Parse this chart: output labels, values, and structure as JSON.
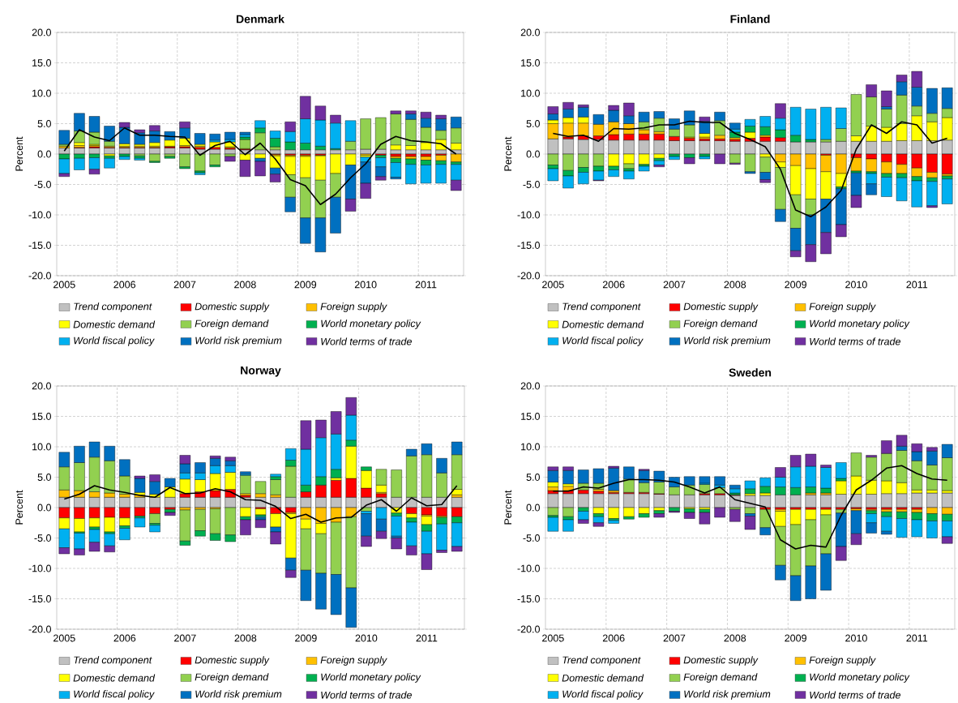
{
  "chart_data": [
    {
      "type": "bar",
      "stacked": true,
      "title": "Denmark",
      "ylabel": "Percent",
      "grid": true,
      "legend": "bottom",
      "categories": [
        "2005",
        null,
        null,
        null,
        "2006",
        null,
        null,
        null,
        "2007",
        null,
        null,
        null,
        "2008",
        null,
        null,
        null,
        "2009",
        null,
        null,
        null,
        "2010",
        null,
        null,
        null,
        "2011",
        null,
        null
      ],
      "ylim": [
        -20,
        20
      ],
      "yticks": [
        {
          "value": -20,
          "label": "-20.0"
        },
        {
          "value": -15,
          "label": "-15.0"
        },
        {
          "value": -10,
          "label": "-10.0"
        },
        {
          "value": -5,
          "label": "-5.0"
        },
        {
          "value": 0,
          "label": "0.0"
        },
        {
          "value": 5,
          "label": "5.0"
        },
        {
          "value": 10,
          "label": "10.0"
        },
        {
          "value": 15,
          "label": "15.0"
        },
        {
          "value": 20,
          "label": "20.0"
        }
      ],
      "series": [
        {
          "name": "Trend component",
          "color": "#c0c0c0",
          "values": [
            1.0,
            1.0,
            1.0,
            1.0,
            1.0,
            1.0,
            1.0,
            1.0,
            1.0,
            0.8,
            0.8,
            0.8,
            0.7,
            0.7,
            0.7,
            0.7,
            0.7,
            0.7,
            0.7,
            0.7,
            0.8,
            0.8,
            0.7,
            0.7,
            0.7,
            0.7,
            0.7
          ]
        },
        {
          "name": "Domestic supply",
          "color": "#ff0000",
          "values": [
            null,
            0.1,
            0.2,
            0.1,
            0.1,
            0.1,
            0.1,
            0.2,
            0.2,
            0.3,
            0.3,
            0.2,
            0.1,
            0,
            -0.1,
            -0.2,
            -0.2,
            -0.2,
            0,
            0,
            0,
            -0.2,
            -0.4,
            -0.4,
            -0.4,
            -0.2,
            0
          ]
        },
        {
          "name": "Foreign supply",
          "color": "#ffc000",
          "values": [
            0.3,
            0.3,
            0.2,
            0.2,
            0.2,
            0.2,
            0.2,
            0.1,
            0.2,
            0.2,
            null,
            0.2,
            0.1,
            0,
            -0.2,
            -0.2,
            -0.2,
            -0.1,
            0,
            0,
            -0.2,
            0,
            -0.3,
            -0.4,
            -0.6,
            -0.9,
            -1.3
          ]
        },
        {
          "name": "Domestic demand",
          "color": "#ffff00",
          "values": [
            null,
            0.5,
            0.2,
            -0.3,
            0.4,
            0.3,
            0.6,
            1.0,
            1.2,
            0.3,
            0.9,
            0.8,
            -1.0,
            -0.7,
            -2.0,
            -3.0,
            -3.5,
            -4.0,
            -3.2,
            -1.8,
            -0.3,
            0,
            0.8,
            0.7,
            1.2,
            1.7,
            1.1
          ]
        },
        {
          "name": "Foreign demand",
          "color": "#92d050",
          "values": [
            0.3,
            1.9,
            2.0,
            0.8,
            0,
            -0.3,
            -1.2,
            -0.4,
            -2.1,
            -2.8,
            -1.8,
            -0.4,
            1.5,
            2.8,
            0.5,
            -3.7,
            -6.6,
            -6.2,
            -3.9,
            1.4,
            5.0,
            5.2,
            5.1,
            4.3,
            2.5,
            1.5,
            2.5
          ]
        },
        {
          "name": "World monetary policy",
          "color": "#00b050",
          "values": [
            -0.8,
            -0.7,
            -0.6,
            -0.4,
            -0.4,
            -0.4,
            -0.2,
            -0.3,
            -0.3,
            -0.3,
            -0.3,
            0,
            0.4,
            0.8,
            1.4,
            1.3,
            1.1,
            0.6,
            0.2,
            0,
            0,
            -0.4,
            -0.7,
            -0.9,
            -0.8,
            -0.6,
            -0.4
          ]
        },
        {
          "name": "World fiscal policy",
          "color": "#00b0f0",
          "values": [
            -2.4,
            -1.9,
            -1.9,
            -1.6,
            -0.5,
            -0.3,
            0,
            0,
            0,
            -0.3,
            0.3,
            0.4,
            0.4,
            1.2,
            1.2,
            1.7,
            4.0,
            4.3,
            4.2,
            3.4,
            -0.8,
            -1.5,
            -2.4,
            -3.2,
            -3.0,
            -3.1,
            -2.6
          ]
        },
        {
          "name": "World risk premium",
          "color": "#0070c0",
          "values": [
            2.3,
            2.9,
            2.6,
            2.5,
            2.7,
            1.9,
            1.9,
            1.4,
            1.7,
            1.8,
            1.0,
            1.2,
            0.4,
            -0.5,
            -1.0,
            -2.4,
            -4.2,
            -5.6,
            -5.9,
            -5.6,
            -3.5,
            -1.6,
            -0.3,
            0.9,
            1.5,
            1.9,
            1.8
          ]
        },
        {
          "name": "World terms of trade",
          "color": "#7030a0",
          "values": [
            -0.5,
            0,
            -0.8,
            0,
            0.8,
            0.5,
            0.9,
            0,
            1.0,
            0,
            0,
            -0.8,
            -2.7,
            -2.4,
            -1.3,
            1.6,
            3.7,
            2.3,
            1.3,
            -2.0,
            -2.5,
            -0.6,
            0.5,
            0.5,
            1.0,
            0.6,
            -1.7
          ]
        },
        {
          "type": "line",
          "color": "#000000",
          "values": [
            0.5,
            4.0,
            2.8,
            2.2,
            4.3,
            3.1,
            3.1,
            2.9,
            2.8,
            -0.2,
            1.4,
            2.1,
            -0.1,
            1.8,
            -0.8,
            -4.2,
            -5.2,
            -8.3,
            -6.6,
            -3.9,
            -1.6,
            1.6,
            2.9,
            2.2,
            2.0,
            1.7,
            0.0
          ]
        }
      ]
    },
    {
      "type": "bar",
      "stacked": true,
      "title": "Finland",
      "ylabel": "Percent",
      "grid": true,
      "legend": "bottom",
      "categories": [
        "2005",
        null,
        null,
        null,
        "2006",
        null,
        null,
        null,
        "2007",
        null,
        null,
        null,
        "2008",
        null,
        null,
        null,
        "2009",
        null,
        null,
        null,
        "2010",
        null,
        null,
        null,
        "2011",
        null,
        null
      ],
      "ylim": [
        -20,
        20
      ],
      "yticks": [
        {
          "value": -20,
          "label": "-20.0"
        },
        {
          "value": -15,
          "label": "-15.0"
        },
        {
          "value": -10,
          "label": "-10.0"
        },
        {
          "value": -5,
          "label": "-5.0"
        },
        {
          "value": 0,
          "label": "0.0"
        },
        {
          "value": 5,
          "label": "5.0"
        },
        {
          "value": 10,
          "label": "10.0"
        },
        {
          "value": 15,
          "label": "15.0"
        },
        {
          "value": 20,
          "label": "20.0"
        }
      ],
      "series": [
        {
          "name": "Trend component",
          "color": "#c0c0c0",
          "values": [
            2.5,
            2.5,
            2.4,
            2.4,
            2.3,
            2.3,
            2.3,
            2.3,
            2.2,
            2.2,
            2.2,
            2.2,
            2.1,
            2.1,
            2.1,
            2.1,
            2.0,
            2.0,
            2.0,
            2.1,
            2.1,
            2.1,
            2.1,
            2.2,
            2.2,
            2.2,
            2.3
          ]
        },
        {
          "name": "Domestic supply",
          "color": "#ff0000",
          "values": [
            0,
            0.3,
            0.6,
            0.6,
            0.9,
            1.0,
            1.0,
            1.0,
            0.7,
            0.4,
            0.3,
            0.3,
            0.3,
            0.5,
            0.7,
            0.6,
            0,
            0,
            -0.2,
            0,
            -0.6,
            -0.8,
            -1.3,
            -1.7,
            -2.3,
            -3.0,
            -3.3
          ]
        },
        {
          "name": "Foreign supply",
          "color": "#ffc000",
          "values": [
            2.5,
            2.3,
            2.1,
            1.9,
            2.1,
            1.7,
            0.7,
            0.4,
            0,
            0.2,
            0.3,
            0.6,
            0.3,
            0,
            0.3,
            -1.3,
            -1.9,
            -2.4,
            -2.7,
            -3.2,
            -2.2,
            -2.1,
            -1.9,
            -1.5,
            -1.4,
            -0.9,
            -0.3
          ]
        },
        {
          "name": "Domestic demand",
          "color": "#ffff00",
          "values": [
            0.6,
            0.9,
            1.0,
            0,
            -2.0,
            -1.6,
            -1.7,
            -0.7,
            0,
            0,
            0.6,
            0,
            0,
            1.0,
            -0.5,
            -0.9,
            -4.8,
            -5.0,
            -4.5,
            -2.2,
            0.9,
            2.5,
            2.3,
            2.8,
            4.1,
            3.1,
            3.7
          ]
        },
        {
          "name": "Foreign demand",
          "color": "#92d050",
          "values": [
            -1.8,
            -2.7,
            -2.2,
            -2.0,
            0,
            -0.8,
            1.3,
            2.2,
            1.2,
            2.0,
            0,
            2.4,
            -1.5,
            -2.9,
            -2.5,
            -6.9,
            -5.5,
            -2.6,
            0.4,
            2.1,
            6.8,
            4.8,
            3.0,
            4.7,
            1.6,
            1.4,
            1.5
          ]
        },
        {
          "name": "World monetary policy",
          "color": "#00b050",
          "values": [
            -0.6,
            -0.9,
            -0.8,
            -0.8,
            -0.6,
            -0.4,
            -0.3,
            -0.4,
            -0.4,
            -0.6,
            -0.4,
            0,
            0.9,
            1.0,
            1.4,
            1.3,
            1.1,
            0.4,
            0,
            -0.3,
            -0.3,
            -0.3,
            -0.6,
            -0.7,
            -0.7,
            -0.6,
            -0.5
          ]
        },
        {
          "name": "World fiscal policy",
          "color": "#00b0f0",
          "values": [
            -2.0,
            -2.0,
            -1.9,
            -1.5,
            -1.1,
            -1.3,
            -0.8,
            -0.7,
            -0.5,
            0,
            -0.4,
            0,
            0.5,
            1.1,
            1.7,
            1.9,
            4.6,
            5.0,
            5.3,
            3.4,
            0,
            -1.7,
            -3.2,
            -3.8,
            -4.3,
            -4.0,
            -4.1
          ]
        },
        {
          "name": "World risk premium",
          "color": "#0070c0",
          "values": [
            1.0,
            1.4,
            1.6,
            1.6,
            1.9,
            1.3,
            1.6,
            1.1,
            1.7,
            2.3,
            2.0,
            1.4,
            1.0,
            -0.3,
            -1.2,
            -2.0,
            -3.7,
            -4.9,
            -5.5,
            -5.9,
            -3.7,
            -1.8,
            0.4,
            2.2,
            3.1,
            4.1,
            3.4
          ]
        },
        {
          "name": "World terms of trade",
          "color": "#7030a0",
          "values": [
            1.2,
            1.1,
            0.4,
            -0.1,
            0.8,
            2.1,
            0,
            -0.3,
            0,
            -1.0,
            0.7,
            -1.6,
            -0.2,
            0,
            -0.5,
            2.4,
            -1.0,
            -2.8,
            -3.5,
            -2.0,
            -2.0,
            2.0,
            2.6,
            1.1,
            2.6,
            -0.3,
            0
          ]
        },
        {
          "type": "line",
          "color": "#000000",
          "values": [
            3.4,
            2.9,
            3.1,
            2.1,
            4.2,
            4.1,
            4.3,
            4.8,
            4.8,
            5.4,
            5.2,
            5.2,
            3.4,
            2.4,
            1.2,
            -2.5,
            -9.2,
            -10.3,
            -8.7,
            -6.0,
            0.8,
            4.8,
            3.4,
            5.3,
            4.8,
            1.8,
            2.6
          ]
        }
      ]
    },
    {
      "type": "bar",
      "stacked": true,
      "title": "Norway",
      "ylabel": "Percent",
      "grid": true,
      "legend": "bottom",
      "categories": [
        "2005",
        null,
        null,
        null,
        "2006",
        null,
        null,
        null,
        "2007",
        null,
        null,
        null,
        "2008",
        null,
        null,
        null,
        "2009",
        null,
        null,
        null,
        "2010",
        null,
        null,
        null,
        "2011",
        null,
        null
      ],
      "ylim": [
        -20,
        20
      ],
      "yticks": [
        {
          "value": -20,
          "label": "-20.0"
        },
        {
          "value": -15,
          "label": "-15.0"
        },
        {
          "value": -10,
          "label": "-10.0"
        },
        {
          "value": -5,
          "label": "-5.0"
        },
        {
          "value": 0,
          "label": "0.0"
        },
        {
          "value": 5,
          "label": "5.0"
        },
        {
          "value": 10,
          "label": "10.0"
        },
        {
          "value": 15,
          "label": "15.0"
        },
        {
          "value": 20,
          "label": "20.0"
        }
      ],
      "series": [
        {
          "name": "Trend component",
          "color": "#c0c0c0",
          "values": [
            1.7,
            1.7,
            1.7,
            1.7,
            1.7,
            1.7,
            1.7,
            1.7,
            1.7,
            1.7,
            1.7,
            1.7,
            1.7,
            1.7,
            1.7,
            1.7,
            1.7,
            1.7,
            1.7,
            1.7,
            1.7,
            1.7,
            1.7,
            1.7,
            1.7,
            1.7,
            1.7
          ]
        },
        {
          "name": "Domestic supply",
          "color": "#ff0000",
          "values": [
            -1.7,
            -1.8,
            -1.7,
            -1.6,
            -1.7,
            -1.4,
            -1.0,
            -0.3,
            0.6,
            0.9,
            1.1,
            1.3,
            0.3,
            -0.2,
            -1.0,
            -0.8,
            0.9,
            2.0,
            2.8,
            3.1,
            1.5,
            0.6,
            0,
            -1.0,
            -1.2,
            -1.4,
            -1.5
          ]
        },
        {
          "name": "Foreign supply",
          "color": "#ffc000",
          "values": [
            1.2,
            1.1,
            0.9,
            0.7,
            0.5,
            0.4,
            null,
            0,
            -0.4,
            -0.3,
            -0.2,
            0,
            0.3,
            0.6,
            0.4,
            -0.2,
            -1.9,
            -2.6,
            -2.4,
            -1.5,
            0,
            0.2,
            0,
            0,
            -0.2,
            -0.2,
            0.4
          ]
        },
        {
          "name": "Domestic demand",
          "color": "#ffff00",
          "values": [
            -1.8,
            -2.2,
            -1.5,
            -2.4,
            -1.3,
            0.4,
            0.5,
            1.7,
            2.4,
            2.0,
            2.8,
            2.8,
            -1.5,
            -1.0,
            -2.2,
            -7.3,
            -1.6,
            -1.7,
            0.4,
            5.3,
            2.9,
            1.2,
            -0.9,
            -0.7,
            -1.4,
            0,
            0.9
          ]
        },
        {
          "name": "Foreign demand",
          "color": "#92d050",
          "values": [
            3.8,
            4.6,
            5.7,
            5.3,
            3.0,
            0,
            -1.6,
            0,
            -5.1,
            -3.5,
            -4.1,
            -4.5,
            3.0,
            2.0,
            2.5,
            5.1,
            -6.8,
            -6.5,
            -8.6,
            -11.7,
            -0.6,
            2.6,
            4.5,
            6.8,
            7.0,
            4.0,
            5.7
          ]
        },
        {
          "name": "World monetary policy",
          "color": "#00b050",
          "values": [
            0,
            -0.2,
            -0.4,
            -0.3,
            -0.4,
            -0.3,
            -0.3,
            -0.5,
            -0.7,
            -0.9,
            -1.1,
            -1.1,
            -0.5,
            -0.3,
            0.5,
            1.0,
            1.1,
            1.4,
            1.4,
            1.0,
            0.6,
            0,
            -0.5,
            -0.7,
            -1.1,
            -1.1,
            -1.0
          ]
        },
        {
          "name": "World fiscal policy",
          "color": "#00b0f0",
          "values": [
            -3.1,
            -2.6,
            -2.1,
            -2.0,
            -1.9,
            -1.5,
            -1.1,
            0,
            1.0,
            1.1,
            1.3,
            1.1,
            0.2,
            -0.2,
            0.4,
            1.9,
            5.9,
            6.4,
            5.8,
            4.1,
            -0.4,
            -1.9,
            -3.3,
            -3.9,
            -3.7,
            -4.3,
            -3.9
          ]
        },
        {
          "name": "World risk premium",
          "color": "#0070c0",
          "values": [
            2.4,
            2.7,
            2.5,
            2.4,
            2.7,
            2.3,
            2.1,
            1.4,
            1.5,
            1.7,
            1.2,
            0.8,
            0.4,
            -0.3,
            -0.8,
            -2.0,
            -5.0,
            -5.9,
            -6.6,
            -6.5,
            -3.7,
            -2.0,
            -0.3,
            1.1,
            1.8,
            2.4,
            2.1
          ]
        },
        {
          "name": "World terms of trade",
          "color": "#7030a0",
          "values": [
            -1.0,
            -1.0,
            -1.5,
            -1.0,
            0,
            0.4,
            1.1,
            -0.5,
            1.4,
            0,
            0.4,
            0.6,
            -2.5,
            -1.3,
            -2.0,
            -1.2,
            4.7,
            2.9,
            3.7,
            2.9,
            -1.7,
            -1.2,
            -1.8,
            -1.5,
            -2.6,
            -0.4,
            -0.8
          ]
        },
        {
          "type": "line",
          "color": "#000000",
          "values": [
            1.4,
            2.2,
            3.6,
            2.9,
            2.5,
            2.0,
            1.7,
            3.3,
            2.3,
            2.4,
            3.1,
            2.6,
            1.3,
            1.2,
            0.2,
            -1.8,
            -1.1,
            -2.4,
            -1.7,
            -1.6,
            0.4,
            1.3,
            -0.6,
            1.6,
            0.3,
            0.5,
            3.6
          ]
        }
      ]
    },
    {
      "type": "bar",
      "stacked": true,
      "title": "Sweden",
      "ylabel": "Percent",
      "grid": true,
      "legend": "bottom",
      "categories": [
        "2005",
        null,
        null,
        null,
        "2006",
        null,
        null,
        null,
        "2007",
        null,
        null,
        null,
        "2008",
        null,
        null,
        null,
        "2009",
        null,
        null,
        null,
        "2010",
        null,
        null,
        null,
        "2011",
        null,
        null
      ],
      "ylim": [
        -20,
        20
      ],
      "yticks": [
        {
          "value": -20,
          "label": "-20.0"
        },
        {
          "value": -15,
          "label": "-15.0"
        },
        {
          "value": -10,
          "label": "-10.0"
        },
        {
          "value": -5,
          "label": "-5.0"
        },
        {
          "value": 0,
          "label": "0.0"
        },
        {
          "value": 5,
          "label": "5.0"
        },
        {
          "value": 10,
          "label": "10.0"
        },
        {
          "value": 15,
          "label": "15.0"
        },
        {
          "value": 20,
          "label": "20.0"
        }
      ],
      "series": [
        {
          "name": "Trend component",
          "color": "#c0c0c0",
          "values": [
            2.3,
            2.3,
            2.3,
            2.3,
            2.3,
            2.3,
            2.3,
            2.2,
            2.1,
            2.1,
            2.1,
            2.1,
            2.0,
            2.0,
            2.0,
            2.1,
            2.1,
            2.1,
            2.1,
            2.2,
            2.2,
            2.2,
            2.3,
            2.3,
            2.4,
            2.4,
            2.4
          ]
        },
        {
          "name": "Domestic supply",
          "color": "#ff0000",
          "values": [
            0.5,
            0.5,
            0.6,
            0.4,
            0.2,
            0.2,
            0.2,
            0.1,
            0,
            0,
            0.2,
            0.2,
            0.1,
            0,
            -0.3,
            -0.3,
            -0.3,
            -0.3,
            -0.3,
            -0.3,
            -0.2,
            -0.3,
            -0.3,
            -0.3,
            -0.3,
            0,
            0
          ]
        },
        {
          "name": "Foreign supply",
          "color": "#ffc000",
          "values": [
            0.6,
            0.7,
            0,
            0.3,
            0.3,
            0,
            0,
            0,
            0,
            0,
            0,
            0,
            0,
            0,
            0,
            -0.3,
            0,
            0.3,
            0.3,
            0,
            -0.3,
            -0.2,
            -0.4,
            -0.4,
            -0.5,
            -1.0,
            -1.1
          ]
        },
        {
          "name": "Domestic demand",
          "color": "#ffff00",
          "values": [
            0.8,
            0.4,
            0,
            -1.0,
            -1.8,
            -1.5,
            -1.0,
            -0.5,
            0,
            -0.2,
            -0.3,
            0,
            0,
            0.3,
            0.4,
            -2.5,
            -2.5,
            -1.7,
            -0.9,
            2.2,
            3.0,
            2.3,
            2.1,
            1.8,
            0.5,
            0.5,
            0.4
          ]
        },
        {
          "name": "Foreign demand",
          "color": "#92d050",
          "values": [
            -1.3,
            -1.5,
            1.1,
            1.0,
            0,
            2.2,
            1.6,
            1.9,
            1.3,
            1.6,
            1.5,
            1.0,
            -0.3,
            -1.0,
            -3.0,
            -6.4,
            -8.4,
            -7.6,
            -6.4,
            -0.6,
            3.8,
            3.8,
            4.5,
            5.3,
            4.8,
            4.1,
            5.4
          ]
        },
        {
          "name": "World monetary policy",
          "color": "#00b050",
          "values": [
            -0.3,
            -0.5,
            -0.6,
            -0.5,
            -0.3,
            -0.4,
            -0.6,
            -0.5,
            -0.6,
            -0.6,
            -0.5,
            0,
            0.3,
            0.8,
            1.1,
            1.3,
            1.2,
            1.0,
            0.8,
            0.4,
            0,
            -0.5,
            -0.8,
            -1.1,
            -1.2,
            -1.2,
            -1.1
          ]
        },
        {
          "name": "World fiscal policy",
          "color": "#00b0f0",
          "values": [
            -2.3,
            -1.9,
            -1.4,
            -1.0,
            -0.5,
            0,
            0,
            0,
            0,
            0,
            0.2,
            0.4,
            0.7,
            1.3,
            1.4,
            1.6,
            3.4,
            3.4,
            3.4,
            2.6,
            0,
            -1.5,
            -2.4,
            -3.1,
            -2.8,
            -2.8,
            -2.6
          ]
        },
        {
          "name": "World risk premium",
          "color": "#0070c0",
          "values": [
            1.9,
            2.2,
            2.2,
            2.4,
            3.7,
            2.0,
            2.0,
            1.8,
            1.6,
            1.4,
            1.1,
            1.4,
            0.6,
            -0.4,
            -1.2,
            -2.4,
            -4.1,
            -5.4,
            -6.0,
            -5.5,
            -3.8,
            -1.7,
            -0.5,
            0.7,
            1.5,
            2.3,
            2.2
          ]
        },
        {
          "name": "World terms of trade",
          "color": "#7030a0",
          "values": [
            0.6,
            0.6,
            -0.6,
            -0.6,
            0.3,
            0,
            0.2,
            -0.6,
            -0.2,
            -1.0,
            -1.9,
            -1.6,
            -2.0,
            -2.2,
            0,
            1.6,
            1.9,
            2.0,
            0.4,
            -2.3,
            -1.8,
            0.3,
            2.1,
            1.8,
            1.3,
            0.6,
            -1.1
          ]
        },
        {
          "type": "line",
          "color": "#000000",
          "values": [
            2.7,
            2.7,
            3.4,
            3.2,
            4.0,
            4.6,
            4.6,
            4.5,
            4.2,
            3.4,
            2.4,
            3.4,
            1.3,
            0.7,
            0.1,
            -5.3,
            -6.8,
            -6.2,
            -6.5,
            -1.3,
            2.9,
            4.5,
            6.5,
            6.9,
            5.6,
            4.7,
            4.5
          ]
        }
      ]
    }
  ]
}
